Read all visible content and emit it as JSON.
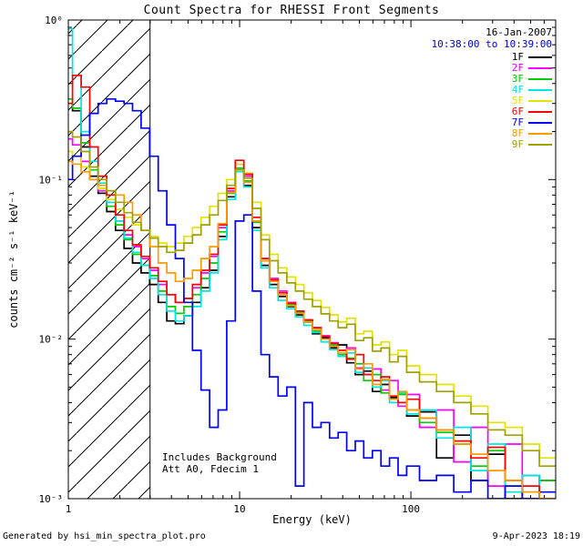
{
  "title": "Count Spectra for RHESSI Front Segments",
  "annotations": {
    "date": "16-Jan-2007",
    "time_range": "10:38:00 to 10:39:00",
    "note1": "Includes Background",
    "note2": "Att A0, Fdecim 1",
    "footer_left": "Generated by hsi_min_spectra_plot.pro",
    "footer_right": "9-Apr-2023 18:19"
  },
  "axes": {
    "xlabel": "Energy (keV)",
    "ylabel": "counts cm⁻² s⁻¹ keV⁻¹",
    "xlim": [
      1,
      700
    ],
    "ylim": [
      0.001,
      1
    ],
    "x_tick_values": [
      1,
      10,
      100
    ],
    "x_tick_labels": [
      "1",
      "10",
      "100"
    ],
    "y_tick_values": [
      0.001,
      0.01,
      0.1,
      1
    ],
    "y_tick_labels": [
      "10⁻³",
      "10⁻²",
      "10⁻¹",
      "10⁰"
    ]
  },
  "hatch_region": {
    "from_kev": 1,
    "to_kev": 3
  },
  "chart_data": {
    "type": "line",
    "mode": "histogram-step",
    "xscale": "log",
    "yscale": "log",
    "title": "Count Spectra for RHESSI Front Segments",
    "xlabel": "Energy (keV)",
    "ylabel": "counts cm⁻² s⁻¹ keV⁻¹",
    "xlim": [
      1,
      700
    ],
    "ylim": [
      0.001,
      1
    ],
    "legend_position": "top-right",
    "x": [
      1.0,
      1.12,
      1.26,
      1.41,
      1.58,
      1.78,
      2.0,
      2.24,
      2.51,
      2.82,
      3.16,
      3.55,
      3.98,
      4.47,
      5.01,
      5.62,
      6.31,
      7.08,
      7.94,
      8.91,
      10.0,
      11.2,
      12.6,
      14.1,
      15.8,
      17.8,
      20.0,
      22.4,
      25.1,
      28.2,
      31.6,
      35.5,
      39.8,
      44.7,
      50.1,
      56.2,
      63.1,
      70.8,
      79.4,
      89.1,
      100,
      126,
      158,
      200,
      251,
      316,
      398,
      501,
      631
    ],
    "series": [
      {
        "name": "1F",
        "color": "#000000",
        "values": [
          0.3,
          0.27,
          0.16,
          0.105,
          0.082,
          0.063,
          0.048,
          0.037,
          0.03,
          0.026,
          0.022,
          0.017,
          0.013,
          0.0125,
          0.014,
          0.017,
          0.021,
          0.027,
          0.044,
          0.078,
          0.115,
          0.092,
          0.05,
          0.029,
          0.022,
          0.0185,
          0.016,
          0.0142,
          0.0128,
          0.0108,
          0.0102,
          0.0088,
          0.0092,
          0.0071,
          0.006,
          0.0063,
          0.0047,
          0.0052,
          0.0043,
          0.0046,
          0.0033,
          0.0035,
          0.0018,
          0.0025,
          0.0013,
          0.0019,
          0.001,
          0.0014,
          0.0009
        ]
      },
      {
        "name": "2F",
        "color": "#ff00ff",
        "values": [
          0.18,
          0.165,
          0.13,
          0.1,
          0.085,
          0.068,
          0.055,
          0.045,
          0.038,
          0.032,
          0.027,
          0.022,
          0.019,
          0.017,
          0.018,
          0.021,
          0.026,
          0.033,
          0.05,
          0.085,
          0.125,
          0.105,
          0.058,
          0.032,
          0.024,
          0.02,
          0.017,
          0.015,
          0.013,
          0.0118,
          0.0105,
          0.0095,
          0.0082,
          0.0088,
          0.0066,
          0.006,
          0.0065,
          0.0048,
          0.0055,
          0.0038,
          0.0045,
          0.0028,
          0.0036,
          0.0017,
          0.0028,
          0.0012,
          0.0022,
          0.001,
          0.0013
        ]
      },
      {
        "name": "3F",
        "color": "#00cc00",
        "values": [
          0.32,
          0.28,
          0.17,
          0.115,
          0.088,
          0.068,
          0.052,
          0.042,
          0.034,
          0.029,
          0.025,
          0.02,
          0.016,
          0.0145,
          0.016,
          0.019,
          0.024,
          0.03,
          0.047,
          0.082,
          0.118,
          0.098,
          0.054,
          0.031,
          0.023,
          0.019,
          0.0165,
          0.0148,
          0.013,
          0.0112,
          0.01,
          0.0092,
          0.008,
          0.0076,
          0.007,
          0.0055,
          0.006,
          0.0046,
          0.0042,
          0.0045,
          0.0036,
          0.003,
          0.0026,
          0.0022,
          0.0016,
          0.002,
          0.0012,
          0.0011,
          0.0013
        ]
      },
      {
        "name": "4F",
        "color": "#00e5e5",
        "values": [
          0.88,
          0.45,
          0.2,
          0.13,
          0.095,
          0.072,
          0.055,
          0.043,
          0.035,
          0.029,
          0.024,
          0.019,
          0.015,
          0.013,
          0.014,
          0.016,
          0.02,
          0.026,
          0.042,
          0.075,
          0.112,
          0.09,
          0.048,
          0.028,
          0.021,
          0.0175,
          0.0155,
          0.0138,
          0.0122,
          0.011,
          0.0096,
          0.0086,
          0.0078,
          0.0082,
          0.0062,
          0.0066,
          0.005,
          0.0055,
          0.004,
          0.0046,
          0.0034,
          0.0036,
          0.0024,
          0.0028,
          0.0015,
          0.0022,
          0.0011,
          0.0014,
          0.001
        ]
      },
      {
        "name": "5F",
        "color": "#e3e300",
        "values": [
          0.15,
          0.14,
          0.12,
          0.1,
          0.088,
          0.075,
          0.065,
          0.058,
          0.052,
          0.048,
          0.044,
          0.04,
          0.038,
          0.04,
          0.044,
          0.05,
          0.058,
          0.068,
          0.082,
          0.1,
          0.125,
          0.11,
          0.072,
          0.045,
          0.034,
          0.028,
          0.0245,
          0.022,
          0.0195,
          0.0175,
          0.0158,
          0.0142,
          0.0128,
          0.0135,
          0.0108,
          0.0112,
          0.0092,
          0.0096,
          0.008,
          0.0085,
          0.0068,
          0.006,
          0.0052,
          0.0044,
          0.0038,
          0.003,
          0.0028,
          0.0022,
          0.0018
        ]
      },
      {
        "name": "6F",
        "color": "#ff0000",
        "values": [
          0.3,
          0.45,
          0.38,
          0.16,
          0.105,
          0.08,
          0.06,
          0.048,
          0.039,
          0.033,
          0.028,
          0.023,
          0.019,
          0.017,
          0.018,
          0.022,
          0.027,
          0.034,
          0.052,
          0.088,
          0.132,
          0.108,
          0.058,
          0.032,
          0.0235,
          0.0195,
          0.0168,
          0.015,
          0.0132,
          0.0118,
          0.0104,
          0.0094,
          0.0085,
          0.0075,
          0.008,
          0.006,
          0.0055,
          0.0058,
          0.0044,
          0.004,
          0.0042,
          0.0032,
          0.0027,
          0.0023,
          0.0018,
          0.0021,
          0.0013,
          0.0012,
          0.001
        ]
      },
      {
        "name": "7F",
        "color": "#0000ff",
        "values": [
          0.1,
          0.14,
          0.19,
          0.26,
          0.3,
          0.32,
          0.31,
          0.3,
          0.27,
          0.21,
          0.14,
          0.085,
          0.052,
          0.032,
          0.017,
          0.0085,
          0.0048,
          0.0028,
          0.0036,
          0.013,
          0.055,
          0.06,
          0.02,
          0.008,
          0.0058,
          0.0044,
          0.005,
          0.0012,
          0.004,
          0.0028,
          0.003,
          0.0024,
          0.0026,
          0.002,
          0.0023,
          0.0018,
          0.002,
          0.0016,
          0.0018,
          0.0014,
          0.0016,
          0.0013,
          0.0014,
          0.0011,
          0.0013,
          0.001,
          0.0012,
          0.001,
          0.0011
        ]
      },
      {
        "name": "8F",
        "color": "#ff9900",
        "values": [
          0.13,
          0.125,
          0.112,
          0.1,
          0.092,
          0.085,
          0.08,
          0.072,
          0.06,
          0.048,
          0.038,
          0.03,
          0.026,
          0.023,
          0.024,
          0.027,
          0.032,
          0.038,
          0.053,
          0.083,
          0.115,
          0.096,
          0.055,
          0.031,
          0.023,
          0.019,
          0.0162,
          0.0145,
          0.0128,
          0.0115,
          0.01,
          0.009,
          0.0082,
          0.0086,
          0.0065,
          0.007,
          0.0052,
          0.0056,
          0.0042,
          0.0047,
          0.0036,
          0.0032,
          0.0027,
          0.0022,
          0.0019,
          0.0015,
          0.0013,
          0.0011,
          0.001
        ]
      },
      {
        "name": "9F",
        "color": "#a0a000",
        "values": [
          0.2,
          0.185,
          0.15,
          0.12,
          0.1,
          0.085,
          0.072,
          0.062,
          0.054,
          0.048,
          0.043,
          0.038,
          0.035,
          0.036,
          0.04,
          0.045,
          0.052,
          0.06,
          0.074,
          0.092,
          0.115,
          0.102,
          0.066,
          0.042,
          0.031,
          0.026,
          0.0225,
          0.02,
          0.0178,
          0.016,
          0.0144,
          0.013,
          0.0118,
          0.0124,
          0.0098,
          0.0102,
          0.0084,
          0.0088,
          0.0072,
          0.0078,
          0.0062,
          0.0054,
          0.0047,
          0.004,
          0.0034,
          0.0027,
          0.0025,
          0.002,
          0.0016
        ]
      }
    ]
  }
}
